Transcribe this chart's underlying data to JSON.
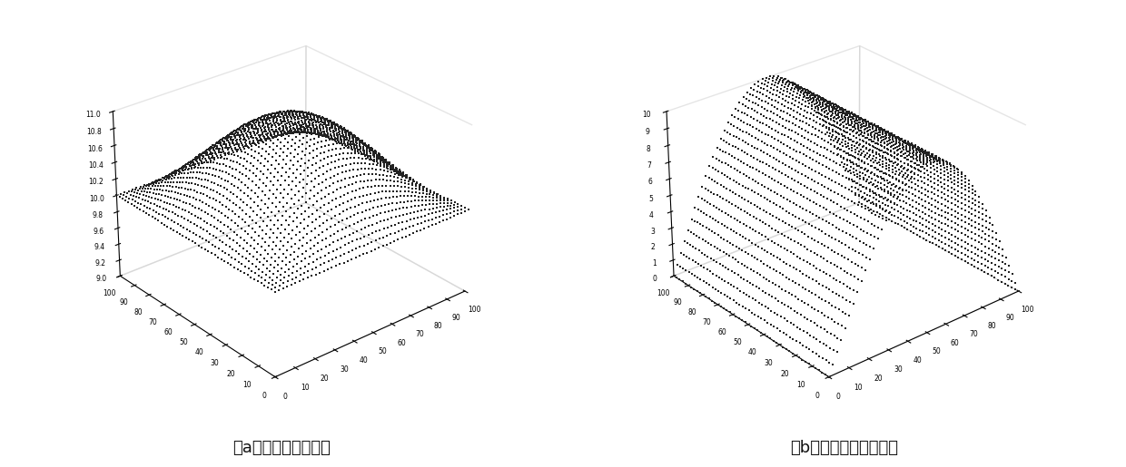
{
  "title_a": "（a）均布函数离散值",
  "title_b": "（b）正弦柱函数离散值",
  "n_a": 51,
  "n_b": 51,
  "x_range": [
    0,
    100
  ],
  "y_range": [
    0,
    100
  ],
  "plot_a_zlim": [
    9,
    11
  ],
  "plot_b_zlim": [
    0,
    10
  ],
  "background_color": "#ffffff",
  "text_color": "#111111",
  "marker_color": "#222222",
  "title_fontsize": 13,
  "elev_a": 28,
  "azim_a": -130,
  "elev_b": 28,
  "azim_b": -130,
  "zticks_a": [
    9,
    9.2,
    9.4,
    9.6,
    9.8,
    10,
    10.2,
    10.4,
    10.6,
    10.8,
    11
  ],
  "zticks_b": [
    0,
    1,
    2,
    3,
    4,
    5,
    6,
    7,
    8,
    9,
    10
  ]
}
